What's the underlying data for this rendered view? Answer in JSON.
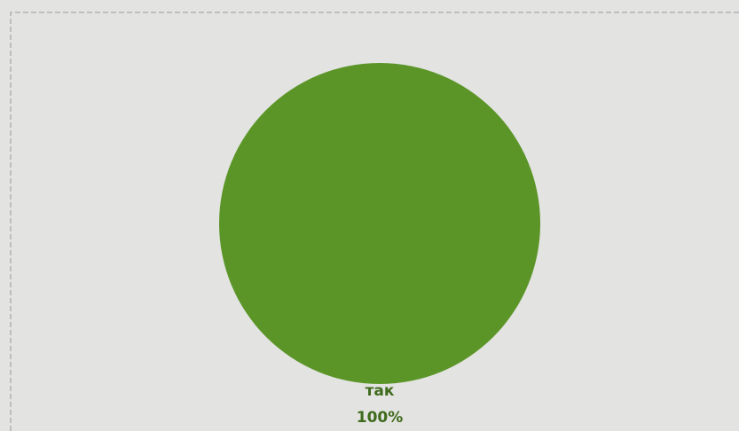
{
  "chart_data": {
    "type": "pie",
    "categories": [
      "так"
    ],
    "values": [
      100
    ],
    "value_labels": [
      "100%"
    ],
    "colors": [
      "#5b9527"
    ]
  }
}
